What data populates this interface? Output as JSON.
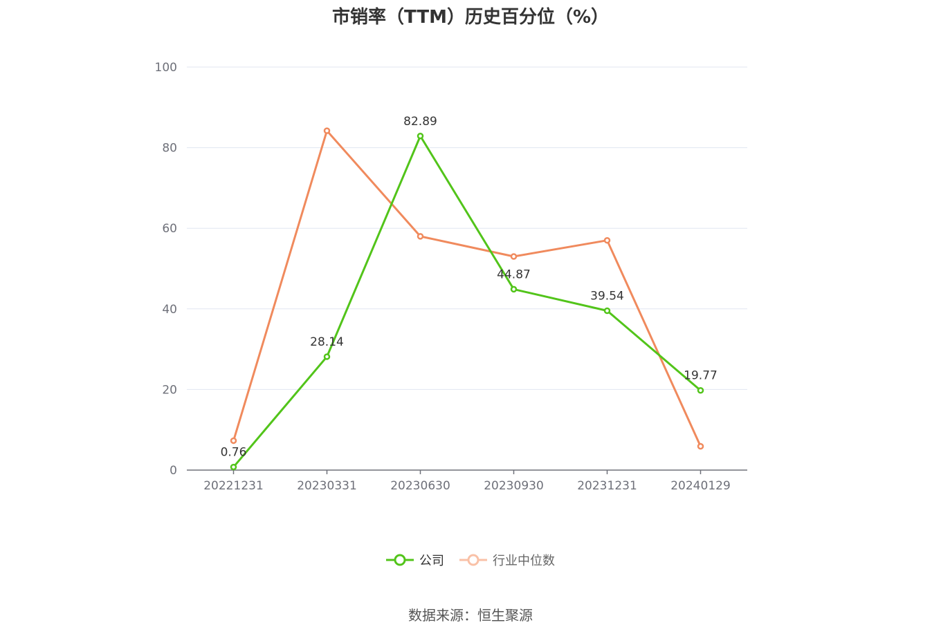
{
  "title": "市销率（TTM）历史百分位（%）",
  "source": "数据来源：恒生聚源",
  "chart_data": {
    "type": "line",
    "title": "市销率（TTM）历史百分位（%）",
    "categories": [
      "20221231",
      "20230331",
      "20230630",
      "20230930",
      "20231231",
      "20240129"
    ],
    "ylim": [
      0,
      100
    ],
    "yticks": [
      0,
      20,
      40,
      60,
      80,
      100
    ],
    "grid": true,
    "legend_position": "bottom",
    "series": [
      {
        "name": "公司",
        "color": "#52c41a",
        "values": [
          0.76,
          28.14,
          82.89,
          44.87,
          39.54,
          19.77
        ],
        "labels": [
          "0.76",
          "28.14",
          "82.89",
          "44.87",
          "39.54",
          "19.77"
        ]
      },
      {
        "name": "行业中位数",
        "color": "#f08a5d",
        "values": [
          7.3,
          84.2,
          58.0,
          53.0,
          57.0,
          5.9
        ]
      }
    ]
  }
}
